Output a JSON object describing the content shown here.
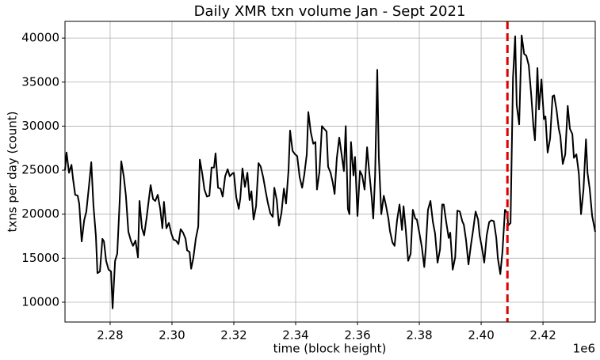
{
  "chart_data": {
    "type": "line",
    "title": "Daily XMR txn volume Jan - Sept 2021",
    "x_label": "time (block height)",
    "y_label": "txns per day (count)",
    "x_offset_label": "1e6",
    "color": "#000000",
    "grid": true,
    "xlim": [
      2265400,
      2436900
    ],
    "ylim": [
      7750,
      41900
    ],
    "xticks": [
      {
        "value": 2280000,
        "label": "2.28"
      },
      {
        "value": 2300000,
        "label": "2.30"
      },
      {
        "value": 2320000,
        "label": "2.32"
      },
      {
        "value": 2340000,
        "label": "2.34"
      },
      {
        "value": 2360000,
        "label": "2.36"
      },
      {
        "value": 2380000,
        "label": "2.38"
      },
      {
        "value": 2400000,
        "label": "2.40"
      },
      {
        "value": 2420000,
        "label": "2.42"
      }
    ],
    "yticks": [
      10000,
      15000,
      20000,
      25000,
      30000,
      35000,
      40000
    ],
    "vline": {
      "x": 2408500,
      "color": "#dd0000"
    },
    "x": [
      2265400,
      2265900,
      2266700,
      2267500,
      2268000,
      2268700,
      2269500,
      2270000,
      2270800,
      2271600,
      2272300,
      2273100,
      2273900,
      2274600,
      2275400,
      2275900,
      2276700,
      2277500,
      2278000,
      2278700,
      2279500,
      2280300,
      2280800,
      2281600,
      2282300,
      2283100,
      2283600,
      2284400,
      2285100,
      2285900,
      2286700,
      2287400,
      2288200,
      2289000,
      2289500,
      2290300,
      2291000,
      2291800,
      2292600,
      2293100,
      2293900,
      2294600,
      2295400,
      2296200,
      2296900,
      2297400,
      2298200,
      2299000,
      2299800,
      2300500,
      2301300,
      2302100,
      2302800,
      2303600,
      2304400,
      2304900,
      2305700,
      2306200,
      2306900,
      2307700,
      2308500,
      2309000,
      2309800,
      2310500,
      2311300,
      2312100,
      2312800,
      2313600,
      2314100,
      2314900,
      2315700,
      2316400,
      2317200,
      2318000,
      2318700,
      2319500,
      2320000,
      2320800,
      2321600,
      2322100,
      2322800,
      2323600,
      2324400,
      2325100,
      2325700,
      2326400,
      2327200,
      2328000,
      2328700,
      2329500,
      2330300,
      2331000,
      2331800,
      2332600,
      2333100,
      2333900,
      2334600,
      2335400,
      2336200,
      2336900,
      2337700,
      2338200,
      2339000,
      2339800,
      2340500,
      2341300,
      2342100,
      2342800,
      2343600,
      2344100,
      2344900,
      2345700,
      2346400,
      2346900,
      2347700,
      2348500,
      2349200,
      2350000,
      2350500,
      2351300,
      2352000,
      2352600,
      2353300,
      2354100,
      2354900,
      2355600,
      2356200,
      2356900,
      2357400,
      2357900,
      2358700,
      2359200,
      2360000,
      2360800,
      2361500,
      2362300,
      2363100,
      2363800,
      2364600,
      2365100,
      2365700,
      2366400,
      2366900,
      2367700,
      2368500,
      2369200,
      2370000,
      2370500,
      2371300,
      2372000,
      2372800,
      2373600,
      2374400,
      2374900,
      2375600,
      2376400,
      2377200,
      2377900,
      2378700,
      2379200,
      2380000,
      2380800,
      2381600,
      2382100,
      2382800,
      2383600,
      2384400,
      2385100,
      2385900,
      2386700,
      2387400,
      2387900,
      2388700,
      2389500,
      2390000,
      2390800,
      2391600,
      2392300,
      2393100,
      2393900,
      2394400,
      2395100,
      2395900,
      2396700,
      2397400,
      2398200,
      2399000,
      2399500,
      2400300,
      2401000,
      2401800,
      2402600,
      2403300,
      2404100,
      2404900,
      2405400,
      2406200,
      2406900,
      2407700,
      2408500,
      2408700,
      2409500,
      2410300,
      2411000,
      2411500,
      2412300,
      2413100,
      2413900,
      2414600,
      2415400,
      2416200,
      2416900,
      2417400,
      2418200,
      2418700,
      2419500,
      2420300,
      2420800,
      2421500,
      2422300,
      2423100,
      2423600,
      2424400,
      2425100,
      2425600,
      2426400,
      2427200,
      2428000,
      2428700,
      2429500,
      2430000,
      2430800,
      2431600,
      2432300,
      2433100,
      2433900,
      2434400,
      2435100,
      2435900,
      2436900
    ],
    "values": [
      25000,
      27000,
      24700,
      25600,
      24000,
      22200,
      22100,
      21200,
      16900,
      19300,
      20300,
      23000,
      25900,
      21000,
      17500,
      13300,
      13500,
      17200,
      16900,
      14700,
      13700,
      13500,
      9300,
      14700,
      15500,
      21600,
      26000,
      24300,
      22100,
      18000,
      17000,
      16400,
      17000,
      15100,
      21500,
      18400,
      17600,
      19600,
      21900,
      23300,
      21700,
      21500,
      22200,
      20600,
      18400,
      21400,
      18400,
      19000,
      17800,
      17100,
      17000,
      16600,
      18300,
      17900,
      17200,
      15900,
      15700,
      13800,
      15000,
      17200,
      18600,
      26200,
      24600,
      22800,
      22000,
      22100,
      25300,
      25300,
      26900,
      23000,
      22900,
      22000,
      24300,
      25100,
      24300,
      24600,
      24700,
      21900,
      20600,
      21800,
      25200,
      23100,
      24700,
      21600,
      22600,
      19400,
      20900,
      25800,
      25400,
      24200,
      22600,
      21300,
      20100,
      19700,
      23000,
      21600,
      18700,
      20100,
      22900,
      21200,
      25000,
      29500,
      27200,
      26800,
      26600,
      24200,
      23000,
      24500,
      26800,
      31600,
      29300,
      28000,
      28200,
      22800,
      24800,
      30000,
      29700,
      29400,
      25400,
      24700,
      23600,
      22300,
      26300,
      28700,
      26700,
      24900,
      30000,
      20600,
      20000,
      28200,
      24400,
      26500,
      19800,
      24900,
      24400,
      22800,
      27600,
      24800,
      21900,
      19500,
      24400,
      36400,
      26500,
      20000,
      22100,
      21000,
      19500,
      18100,
      16800,
      16400,
      19300,
      21100,
      18200,
      20900,
      18300,
      14700,
      15500,
      20500,
      19500,
      19400,
      17900,
      16300,
      14000,
      16200,
      20500,
      21500,
      19100,
      17800,
      14500,
      16000,
      21100,
      21100,
      19100,
      17300,
      17900,
      13700,
      15100,
      20400,
      20300,
      19200,
      18800,
      17100,
      14300,
      16500,
      18200,
      20300,
      19400,
      17600,
      16100,
      14500,
      17600,
      19100,
      19300,
      19200,
      17300,
      15000,
      13200,
      15800,
      20500,
      20100,
      18700,
      19000,
      35500,
      40200,
      32400,
      30200,
      40300,
      38200,
      38000,
      36900,
      33500,
      30000,
      28400,
      36600,
      31900,
      35300,
      30800,
      31100,
      27000,
      28600,
      33400,
      33500,
      31800,
      29700,
      28900,
      25700,
      26800,
      32300,
      29700,
      29100,
      26400,
      26800,
      24600,
      20000,
      22800,
      28500,
      24700,
      22900,
      19800,
      18000
    ]
  }
}
